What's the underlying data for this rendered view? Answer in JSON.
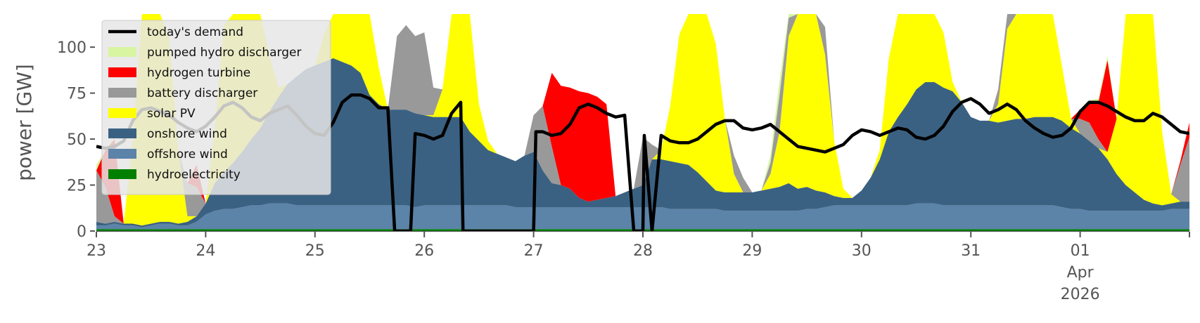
{
  "chart_data": {
    "type": "area",
    "ylabel": "power [GW]",
    "ylim": [
      0,
      118
    ],
    "xlim": [
      0,
      240
    ],
    "yticks": [
      "0",
      "25",
      "50",
      "75",
      "100"
    ],
    "ytick_values": [
      0,
      25,
      50,
      75,
      100
    ],
    "xticks": [
      {
        "x": 0,
        "label": "23"
      },
      {
        "x": 24,
        "label": "24"
      },
      {
        "x": 48,
        "label": "25"
      },
      {
        "x": 72,
        "label": "26"
      },
      {
        "x": 96,
        "label": "27"
      },
      {
        "x": 120,
        "label": "28"
      },
      {
        "x": 144,
        "label": "29"
      },
      {
        "x": 168,
        "label": "30"
      },
      {
        "x": 192,
        "label": "31"
      },
      {
        "x": 216,
        "label": "01",
        "sub": [
          "Apr",
          "2026"
        ]
      }
    ],
    "legend": {
      "placement": "upper-left",
      "entries": [
        {
          "label": "today's demand",
          "color": "#000000",
          "kind": "line"
        },
        {
          "label": "pumped hydro discharger",
          "color": "#d8f5a2",
          "kind": "patch"
        },
        {
          "label": "hydrogen turbine",
          "color": "#ff0000",
          "kind": "patch"
        },
        {
          "label": "battery discharger",
          "color": "#999999",
          "kind": "patch"
        },
        {
          "label": "solar PV",
          "color": "#ffff00",
          "kind": "patch"
        },
        {
          "label": "onshore wind",
          "color": "#3b6182",
          "kind": "patch"
        },
        {
          "label": "offshore wind",
          "color": "#5c83a8",
          "kind": "patch"
        },
        {
          "label": "hydroelectricity",
          "color": "#008000",
          "kind": "patch"
        }
      ]
    },
    "x": [
      0,
      2,
      4,
      6,
      8,
      10,
      12,
      14,
      16,
      18,
      20,
      22,
      24,
      26,
      28,
      30,
      32,
      34,
      36,
      38,
      40,
      42,
      44,
      46,
      48,
      50,
      52,
      54,
      56,
      58,
      60,
      62,
      64,
      66,
      68,
      70,
      72,
      74,
      76,
      78,
      80,
      82,
      84,
      86,
      88,
      90,
      92,
      94,
      96,
      98,
      100,
      102,
      104,
      106,
      108,
      110,
      112,
      114,
      116,
      118,
      120,
      122,
      124,
      126,
      128,
      130,
      132,
      134,
      136,
      138,
      140,
      142,
      144,
      146,
      148,
      150,
      152,
      154,
      156,
      158,
      160,
      162,
      164,
      166,
      168,
      170,
      172,
      174,
      176,
      178,
      180,
      182,
      184,
      186,
      188,
      190,
      192,
      194,
      196,
      198,
      200,
      202,
      204,
      206,
      208,
      210,
      212,
      214,
      216,
      218,
      220,
      222,
      224,
      226,
      228,
      230,
      232,
      234,
      236,
      238,
      240
    ],
    "series": [
      {
        "name": "hydroelectricity",
        "color": "#008000",
        "values": [
          1,
          1,
          1,
          1,
          1,
          1,
          1,
          1,
          1,
          1,
          1,
          1,
          1,
          1,
          1,
          1,
          1,
          1,
          1,
          1,
          1,
          1,
          1,
          1,
          1,
          1,
          1,
          1,
          1,
          1,
          1,
          1,
          1,
          1,
          1,
          1,
          1,
          1,
          1,
          1,
          1,
          1,
          1,
          1,
          1,
          1,
          1,
          1,
          1,
          1,
          1,
          1,
          1,
          1,
          1,
          1,
          1,
          1,
          1,
          1,
          1,
          1,
          1,
          1,
          1,
          1,
          1,
          1,
          1,
          1,
          1,
          1,
          1,
          1,
          1,
          1,
          1,
          1,
          1,
          1,
          1,
          1,
          1,
          1,
          1,
          1,
          1,
          1,
          1,
          1,
          1,
          1,
          1,
          1,
          1,
          1,
          1,
          1,
          1,
          1,
          1,
          1,
          1,
          1,
          1,
          1,
          1,
          1,
          1,
          1,
          1,
          1,
          1,
          1,
          1,
          1,
          1,
          1,
          1,
          1,
          1
        ]
      },
      {
        "name": "offshore wind",
        "color": "#5c83a8",
        "values": [
          2,
          2,
          3,
          2,
          2,
          1,
          2,
          3,
          3,
          2,
          2,
          4,
          8,
          10,
          11,
          11,
          12,
          13,
          13,
          14,
          14,
          14,
          13,
          13,
          13,
          13,
          13,
          13,
          13,
          13,
          13,
          13,
          13,
          13,
          13,
          12,
          13,
          13,
          13,
          13,
          13,
          13,
          13,
          13,
          13,
          13,
          12,
          12,
          12,
          12,
          12,
          12,
          12,
          12,
          12,
          12,
          12,
          12,
          12,
          12,
          12,
          12,
          12,
          11,
          11,
          11,
          11,
          11,
          11,
          10,
          10,
          10,
          10,
          10,
          10,
          10,
          10,
          10,
          11,
          11,
          12,
          13,
          13,
          13,
          13,
          13,
          13,
          13,
          13,
          13,
          14,
          14,
          14,
          13,
          13,
          13,
          13,
          13,
          13,
          13,
          13,
          13,
          13,
          13,
          13,
          13,
          12,
          11,
          11,
          10,
          10,
          10,
          10,
          10,
          10,
          10,
          10,
          10,
          11,
          11,
          11
        ]
      },
      {
        "name": "onshore wind",
        "color": "#3b6182",
        "values": [
          2,
          1,
          1,
          1,
          1,
          1,
          1,
          1,
          1,
          1,
          2,
          3,
          6,
          15,
          20,
          25,
          30,
          36,
          42,
          50,
          58,
          65,
          70,
          74,
          76,
          78,
          80,
          78,
          76,
          72,
          60,
          55,
          52,
          52,
          52,
          51,
          49,
          48,
          48,
          48,
          48,
          40,
          35,
          30,
          28,
          26,
          25,
          28,
          30,
          20,
          13,
          12,
          10,
          5,
          3,
          4,
          5,
          6,
          8,
          10,
          12,
          26,
          26,
          26,
          25,
          24,
          20,
          15,
          10,
          10,
          10,
          10,
          10,
          11,
          12,
          13,
          15,
          12,
          12,
          10,
          8,
          5,
          4,
          4,
          8,
          15,
          25,
          40,
          48,
          55,
          62,
          66,
          66,
          64,
          62,
          56,
          48,
          46,
          46,
          45,
          46,
          47,
          47,
          48,
          48,
          48,
          47,
          44,
          41,
          38,
          34,
          28,
          20,
          14,
          10,
          6,
          4,
          3,
          3,
          4,
          4
        ]
      },
      {
        "name": "solar PV",
        "color": "#ffff00",
        "values": [
          0,
          0,
          0,
          0,
          45,
          125,
          125,
          120,
          100,
          40,
          3,
          0,
          0,
          30,
          80,
          125,
          125,
          120,
          90,
          30,
          5,
          0,
          0,
          0,
          0,
          15,
          80,
          125,
          125,
          110,
          70,
          20,
          0,
          0,
          0,
          0,
          0,
          1,
          15,
          65,
          125,
          90,
          20,
          5,
          0,
          0,
          0,
          0,
          0,
          0,
          0,
          0,
          0,
          0,
          0,
          0,
          0,
          0,
          0,
          0,
          0,
          0,
          5,
          30,
          70,
          120,
          125,
          115,
          80,
          40,
          10,
          0,
          0,
          0,
          8,
          30,
          80,
          125,
          125,
          115,
          75,
          30,
          5,
          0,
          0,
          0,
          5,
          40,
          90,
          125,
          125,
          115,
          80,
          30,
          5,
          0,
          0,
          0,
          0,
          10,
          50,
          110,
          125,
          125,
          110,
          70,
          30,
          5,
          0,
          0,
          0,
          4,
          30,
          100,
          125,
          125,
          110,
          40,
          5,
          0,
          0
        ]
      },
      {
        "name": "battery discharger",
        "color": "#999999",
        "values": [
          28,
          20,
          3,
          0,
          0,
          0,
          0,
          0,
          0,
          0,
          18,
          16,
          0,
          0,
          0,
          0,
          0,
          0,
          0,
          0,
          0,
          0,
          0,
          0,
          0,
          0,
          0,
          0,
          0,
          0,
          0,
          0,
          0,
          40,
          46,
          42,
          45,
          15,
          0,
          0,
          0,
          0,
          0,
          0,
          0,
          0,
          0,
          0,
          20,
          35,
          20,
          0,
          0,
          0,
          0,
          0,
          0,
          0,
          0,
          0,
          26,
          8,
          0,
          0,
          0,
          0,
          0,
          0,
          0,
          0,
          10,
          8,
          0,
          0,
          6,
          20,
          10,
          15,
          12,
          15,
          15,
          0,
          0,
          0,
          0,
          0,
          0,
          0,
          0,
          0,
          0,
          0,
          0,
          0,
          0,
          0,
          0,
          0,
          0,
          8,
          10,
          0,
          0,
          0,
          0,
          0,
          0,
          0,
          8,
          10,
          5,
          0,
          0,
          0,
          0,
          0,
          0,
          0,
          0,
          20,
          35
        ]
      },
      {
        "name": "hydrogen turbine",
        "color": "#ff0000",
        "values": [
          0,
          20,
          42,
          0,
          0,
          0,
          0,
          0,
          0,
          0,
          0,
          12,
          0,
          0,
          0,
          0,
          0,
          0,
          0,
          0,
          0,
          0,
          0,
          0,
          0,
          0,
          0,
          0,
          0,
          0,
          0,
          0,
          0,
          0,
          0,
          0,
          0,
          0,
          0,
          0,
          0,
          0,
          0,
          0,
          0,
          0,
          0,
          0,
          0,
          0,
          40,
          54,
          55,
          58,
          59,
          56,
          51,
          0,
          0,
          0,
          0,
          0,
          0,
          0,
          0,
          0,
          0,
          0,
          0,
          0,
          0,
          0,
          0,
          0,
          0,
          0,
          0,
          0,
          0,
          0,
          0,
          0,
          0,
          0,
          0,
          0,
          0,
          0,
          0,
          0,
          0,
          0,
          0,
          0,
          0,
          0,
          0,
          0,
          0,
          0,
          0,
          0,
          0,
          0,
          0,
          0,
          0,
          0,
          5,
          12,
          20,
          50,
          0,
          0,
          0,
          0,
          0,
          0,
          0,
          2,
          8
        ]
      },
      {
        "name": "pumped hydro discharger",
        "color": "#d8f5a2",
        "values": [
          3,
          0,
          0,
          0,
          0,
          0,
          0,
          0,
          0,
          0,
          0,
          0,
          0,
          0,
          0,
          0,
          0,
          0,
          0,
          0,
          0,
          0,
          0,
          0,
          0,
          0,
          0,
          0,
          0,
          0,
          0,
          0,
          0,
          0,
          0,
          0,
          0,
          0,
          0,
          0,
          0,
          0,
          0,
          0,
          0,
          0,
          0,
          0,
          0,
          0,
          0,
          0,
          0,
          0,
          0,
          0,
          0,
          0,
          0,
          0,
          0,
          0,
          0,
          0,
          0,
          0,
          0,
          0,
          0,
          0,
          0,
          0,
          0,
          0,
          4,
          8,
          6,
          8,
          5,
          3,
          0,
          0,
          0,
          0,
          0,
          0,
          0,
          0,
          0,
          0,
          0,
          0,
          0,
          0,
          0,
          0,
          0,
          0,
          0,
          0,
          0,
          0,
          0,
          0,
          0,
          0,
          0,
          0,
          0,
          0,
          2,
          2,
          0,
          0,
          0,
          0,
          0,
          0,
          0,
          0,
          0
        ]
      },
      {
        "name": "today's demand",
        "color": "#000000",
        "line": true,
        "values": [
          46,
          45,
          46,
          49,
          60,
          66,
          67,
          65,
          63,
          59,
          56,
          54,
          57,
          62,
          68,
          70,
          67,
          62,
          60,
          64,
          66,
          68,
          63,
          57,
          53,
          52,
          59,
          70,
          74,
          74,
          72,
          67,
          67,
          0,
          0,
          53,
          52,
          50,
          52,
          64,
          70,
          0,
          0,
          0,
          0,
          0,
          0,
          0,
          0,
          54,
          52,
          53,
          58,
          67,
          69,
          67,
          64,
          62,
          63,
          0,
          0,
          0,
          52,
          49,
          48,
          48,
          50,
          54,
          58,
          60,
          60,
          56,
          55,
          56,
          58,
          54,
          50,
          46,
          45,
          44,
          43,
          45,
          47,
          52,
          55,
          54,
          52,
          54,
          56,
          55,
          51,
          50,
          52,
          57,
          65,
          70,
          72,
          69,
          64,
          66,
          69,
          66,
          60,
          56,
          53,
          51,
          52,
          56,
          65,
          70,
          70,
          68,
          65,
          62,
          60,
          60,
          64,
          62,
          58,
          54,
          53
        ]
      }
    ],
    "demand_series_index": 7,
    "demand_bridges": [
      {
        "x": 65.5,
        "value": 0,
        "after": 32
      },
      {
        "x": 69,
        "value": 0,
        "after": 34
      },
      {
        "x": 80.5,
        "value": 0,
        "after": 40
      },
      {
        "x": 95,
        "value": 0,
        "after": 47
      },
      {
        "x": 96.5,
        "value": 54,
        "after": 48
      },
      {
        "x": 119.8,
        "value": 0,
        "after": 59
      },
      {
        "x": 120.3,
        "value": 52,
        "after": 60
      }
    ]
  }
}
